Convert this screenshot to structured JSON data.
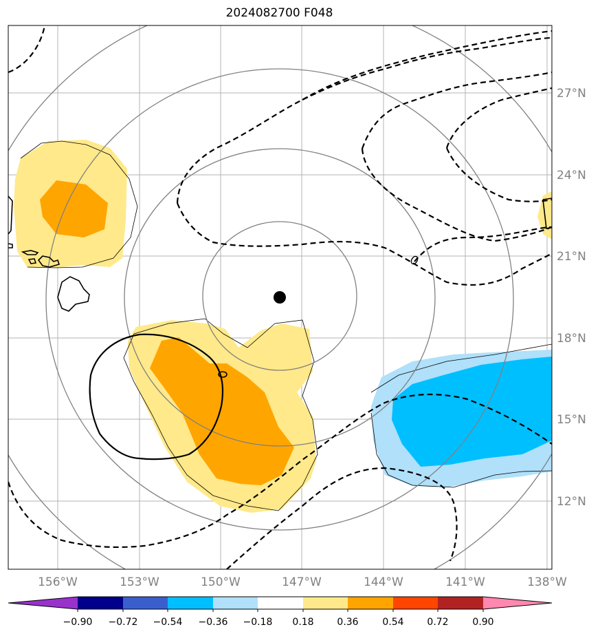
{
  "title": "2024082700 F048",
  "map": {
    "lon_labels": [
      "156°W",
      "153°W",
      "150°W",
      "147°W",
      "144°W",
      "141°W",
      "138°W"
    ],
    "lat_labels": [
      "27°N",
      "24°N",
      "21°N",
      "18°N",
      "15°N",
      "12°N"
    ],
    "center_marker": "storm-center-dot"
  },
  "colorbar": {
    "ticks": [
      "−0.90",
      "−0.72",
      "−0.54",
      "−0.36",
      "−0.18",
      "0.18",
      "0.36",
      "0.54",
      "0.72",
      "0.90"
    ],
    "colors": [
      "#9932cc",
      "#00008b",
      "#3a5fcd",
      "#00bfff",
      "#b0e0fa",
      "#ffffff",
      "#ffe98a",
      "#ffa500",
      "#ff4500",
      "#b22222",
      "#ff88b0"
    ]
  }
}
